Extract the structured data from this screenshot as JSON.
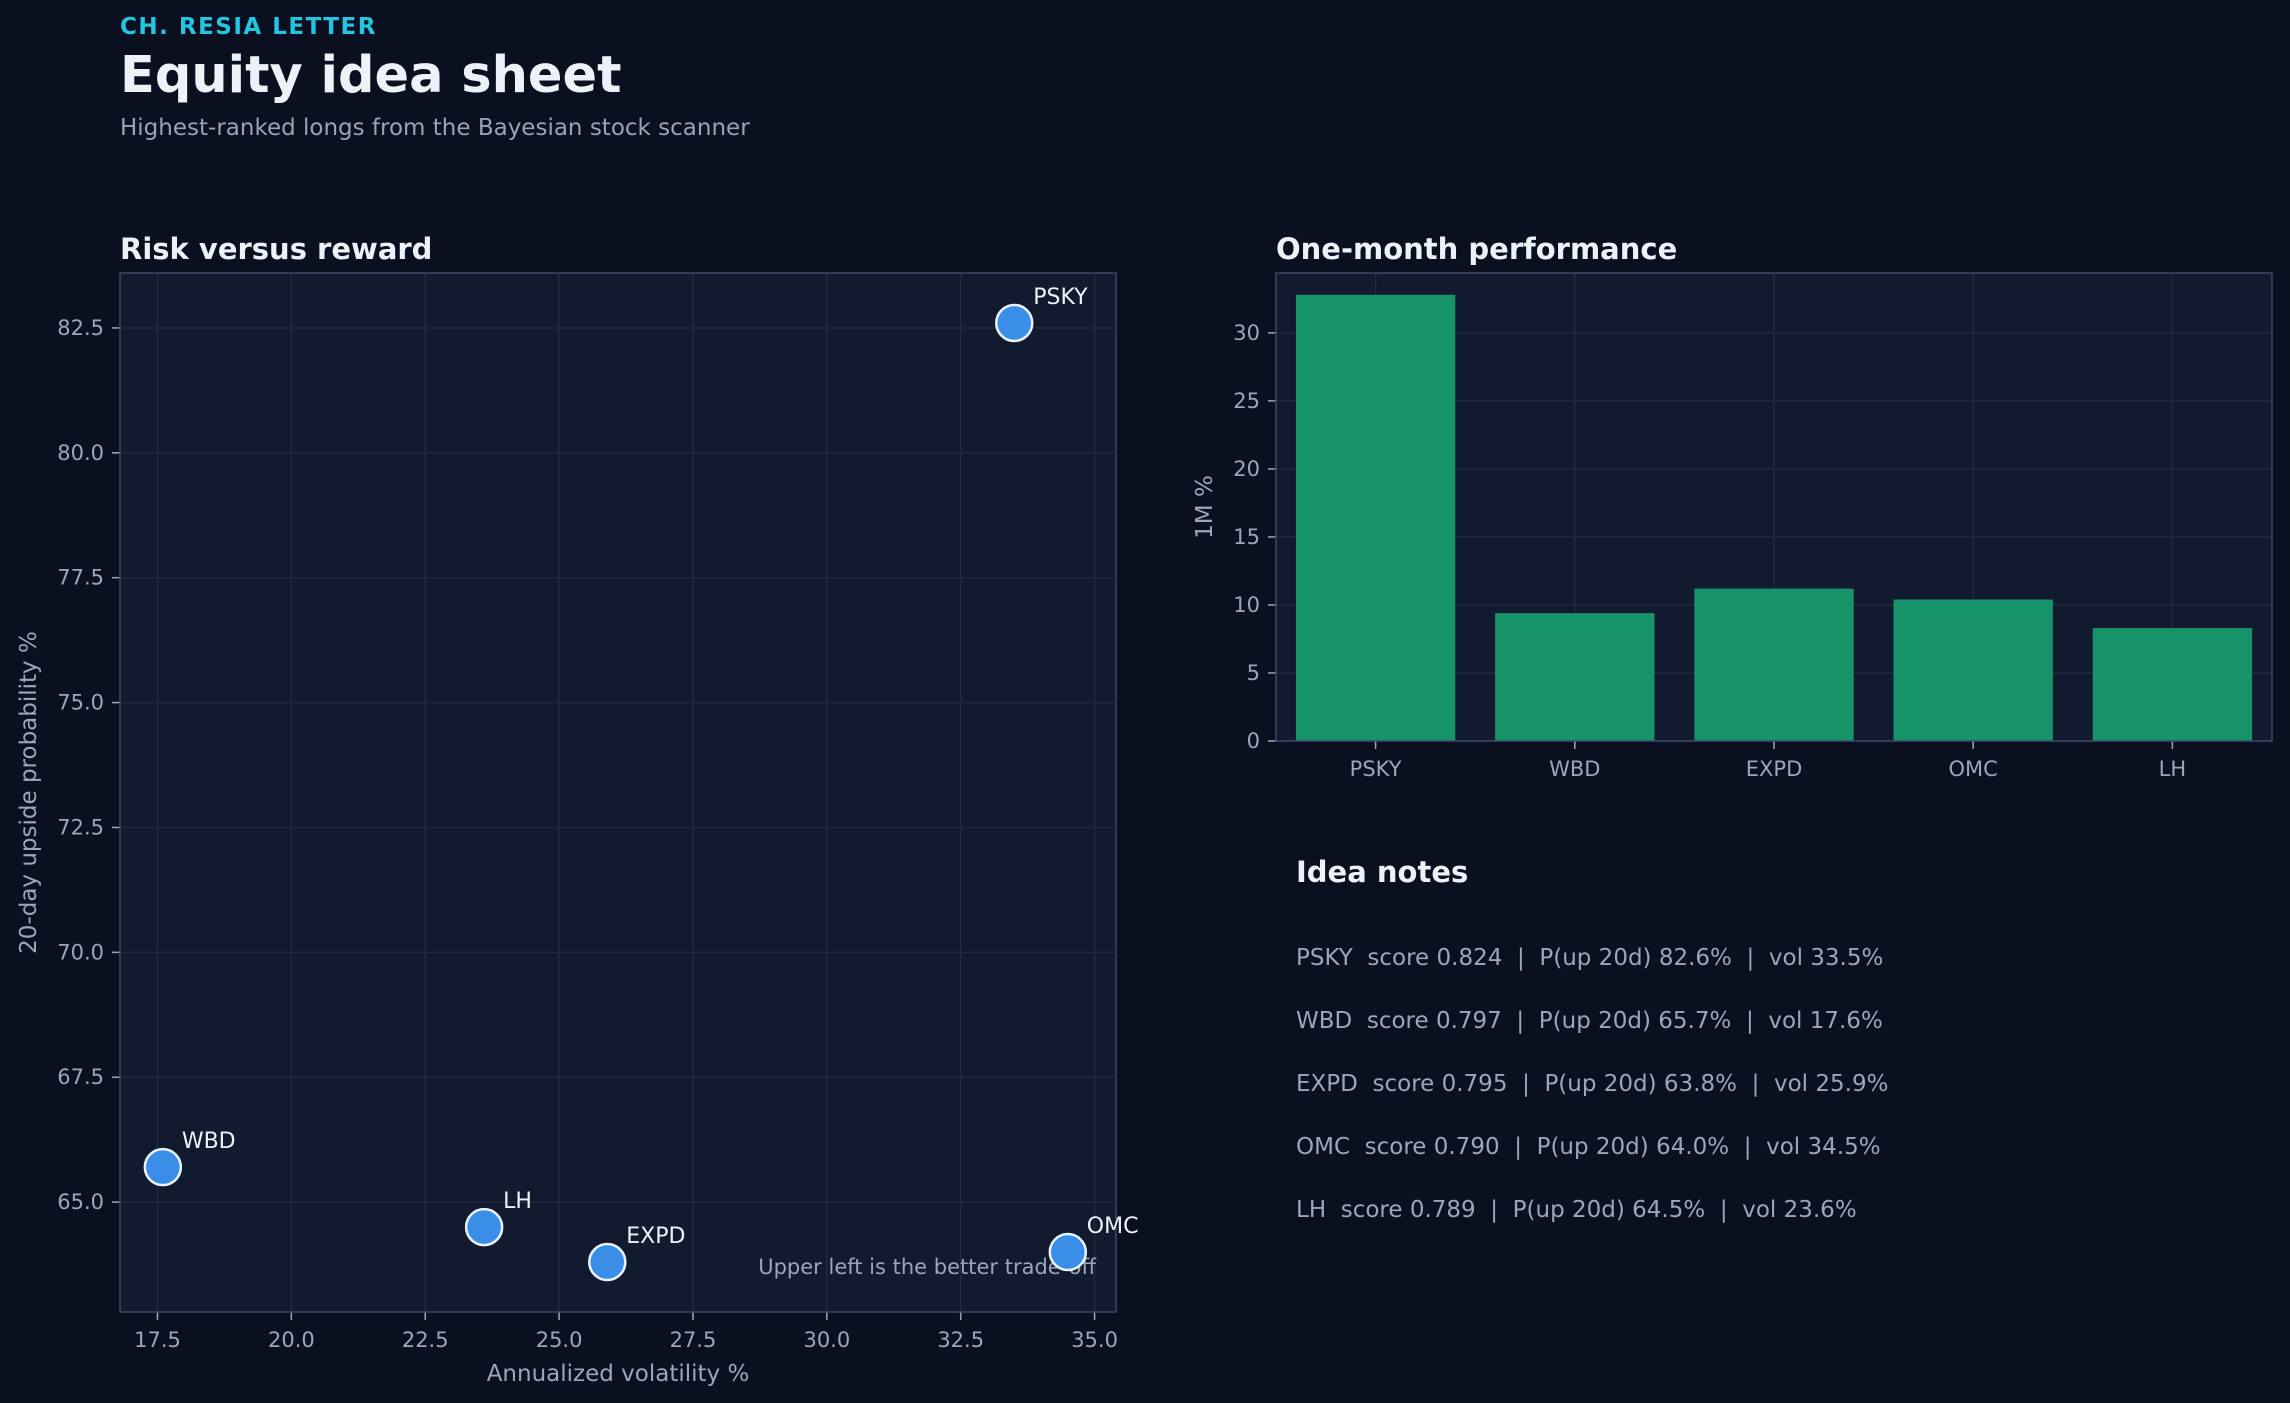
{
  "header": {
    "kicker": "CH. RESIA LETTER",
    "title": "Equity idea sheet",
    "subtitle": "Highest-ranked longs from the Bayesian stock scanner"
  },
  "colors": {
    "background": "#0a1020",
    "panel": "#111a2e",
    "point": "#3a8ee8",
    "bar": "#17936a",
    "kicker": "#22c6e0"
  },
  "chart_data": [
    {
      "type": "scatter",
      "title": "Risk versus reward",
      "xlabel": "Annualized volatility %",
      "ylabel": "20-day upside probability %",
      "xlim": [
        16.8,
        35.4
      ],
      "ylim": [
        62.8,
        83.6
      ],
      "xticks": [
        "17.5",
        "20.0",
        "22.5",
        "25.0",
        "27.5",
        "30.0",
        "32.5",
        "35.0"
      ],
      "yticks": [
        "65.0",
        "67.5",
        "70.0",
        "72.5",
        "75.0",
        "77.5",
        "80.0",
        "82.5"
      ],
      "grid": true,
      "annotation": "Upper left is the better trade-off",
      "points": [
        {
          "label": "PSKY",
          "x": 33.5,
          "y": 82.6
        },
        {
          "label": "WBD",
          "x": 17.6,
          "y": 65.7
        },
        {
          "label": "EXPD",
          "x": 25.9,
          "y": 63.8
        },
        {
          "label": "OMC",
          "x": 34.5,
          "y": 64.0
        },
        {
          "label": "LH",
          "x": 23.6,
          "y": 64.5
        }
      ]
    },
    {
      "type": "bar",
      "title": "One-month performance",
      "xlabel": "",
      "ylabel": "1M %",
      "ylim": [
        0,
        34.4
      ],
      "yticks": [
        "0",
        "5",
        "10",
        "15",
        "20",
        "25",
        "30"
      ],
      "grid": true,
      "categories": [
        "PSKY",
        "WBD",
        "EXPD",
        "OMC",
        "LH"
      ],
      "values": [
        32.8,
        9.4,
        11.2,
        10.4,
        8.3
      ]
    }
  ],
  "notes": {
    "title": "Idea notes",
    "items": [
      "PSKY  score 0.824  |  P(up 20d) 82.6%  |  vol 33.5%",
      "WBD  score 0.797  |  P(up 20d) 65.7%  |  vol 17.6%",
      "EXPD  score 0.795  |  P(up 20d) 63.8%  |  vol 25.9%",
      "OMC  score 0.790  |  P(up 20d) 64.0%  |  vol 34.5%",
      "LH  score 0.789  |  P(up 20d) 64.5%  |  vol 23.6%"
    ]
  }
}
